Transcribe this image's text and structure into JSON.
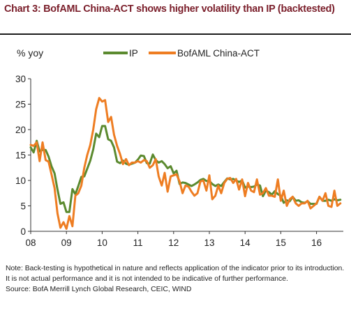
{
  "title": "Chart 3: BofAML China-ACT shows higher volatility than IP (backtested)",
  "footnote": "Note: Back-testing is hypothetical in nature and reflects application of the indicator prior to its introduction. It is not actual performance and it is not intended to be indicative of further performance.",
  "source": "Source: BofA Merrill Lynch Global Research, CEIC, WIND",
  "chart_data": {
    "type": "line",
    "ylabel": "% yoy",
    "ylim": [
      0,
      30
    ],
    "yticks": [
      0,
      5,
      10,
      15,
      20,
      25,
      30
    ],
    "xlim": [
      2008,
      2016.75
    ],
    "xticks": [
      2008,
      2009,
      2010,
      2011,
      2012,
      2013,
      2014,
      2015,
      2016
    ],
    "xticklabels": [
      "08",
      "09",
      "10",
      "11",
      "12",
      "13",
      "14",
      "15",
      "16"
    ],
    "grid": false,
    "legend": "top",
    "series": [
      {
        "name": "IP",
        "color": "#5b8a2f",
        "x": [
          2008.0,
          2008.083,
          2008.167,
          2008.25,
          2008.333,
          2008.417,
          2008.5,
          2008.583,
          2008.667,
          2008.75,
          2008.833,
          2008.917,
          2009.0,
          2009.083,
          2009.167,
          2009.25,
          2009.333,
          2009.417,
          2009.5,
          2009.583,
          2009.667,
          2009.75,
          2009.833,
          2009.917,
          2010.0,
          2010.083,
          2010.167,
          2010.25,
          2010.333,
          2010.417,
          2010.5,
          2010.583,
          2010.667,
          2010.75,
          2010.833,
          2010.917,
          2011.0,
          2011.083,
          2011.167,
          2011.25,
          2011.333,
          2011.417,
          2011.5,
          2011.583,
          2011.667,
          2011.75,
          2011.833,
          2011.917,
          2012.0,
          2012.083,
          2012.167,
          2012.25,
          2012.333,
          2012.417,
          2012.5,
          2012.583,
          2012.667,
          2012.75,
          2012.833,
          2012.917,
          2013.0,
          2013.083,
          2013.167,
          2013.25,
          2013.333,
          2013.417,
          2013.5,
          2013.583,
          2013.667,
          2013.75,
          2013.833,
          2013.917,
          2014.0,
          2014.083,
          2014.167,
          2014.25,
          2014.333,
          2014.417,
          2014.5,
          2014.583,
          2014.667,
          2014.75,
          2014.833,
          2014.917,
          2015.0,
          2015.083,
          2015.167,
          2015.25,
          2015.333,
          2015.417,
          2015.5,
          2015.583,
          2015.667,
          2015.75,
          2015.833,
          2015.917,
          2016.0,
          2016.083,
          2016.167,
          2016.25,
          2016.333,
          2016.417,
          2016.5,
          2016.583,
          2016.667
        ],
        "values": [
          16.5,
          15.5,
          17.8,
          15.7,
          16.0,
          16.0,
          14.7,
          12.8,
          11.4,
          8.2,
          5.4,
          5.7,
          3.8,
          3.8,
          8.3,
          7.3,
          8.9,
          10.7,
          10.8,
          12.3,
          13.9,
          16.1,
          19.2,
          18.5,
          20.7,
          20.7,
          18.1,
          17.8,
          16.5,
          13.7,
          13.4,
          13.9,
          13.3,
          13.1,
          13.3,
          13.5,
          14.1,
          14.9,
          14.8,
          13.4,
          13.3,
          15.1,
          14.0,
          13.5,
          13.8,
          13.2,
          12.4,
          12.8,
          11.4,
          11.9,
          9.3,
          9.6,
          9.5,
          9.2,
          8.9,
          9.2,
          9.6,
          10.1,
          10.3,
          9.9,
          9.9,
          9.3,
          8.9,
          9.2,
          8.9,
          9.7,
          10.4,
          10.2,
          10.3,
          10.0,
          9.7,
          10.0,
          8.6,
          8.8,
          8.7,
          8.8,
          9.2,
          9.0,
          6.9,
          8.0,
          7.7,
          7.2,
          7.9,
          7.3,
          7.0,
          5.6,
          6.1,
          5.9,
          6.8,
          6.0,
          6.1,
          5.7,
          5.6,
          5.9,
          5.4,
          5.4,
          5.4,
          6.8,
          6.0,
          6.0,
          6.2,
          6.0,
          6.3,
          6.1,
          6.2
        ]
      },
      {
        "name": "BofAML China-ACT",
        "color": "#ee7d22",
        "x": [
          2008.0,
          2008.083,
          2008.167,
          2008.25,
          2008.333,
          2008.417,
          2008.5,
          2008.583,
          2008.667,
          2008.75,
          2008.833,
          2008.917,
          2009.0,
          2009.083,
          2009.167,
          2009.25,
          2009.333,
          2009.417,
          2009.5,
          2009.583,
          2009.667,
          2009.75,
          2009.833,
          2009.917,
          2010.0,
          2010.083,
          2010.167,
          2010.25,
          2010.333,
          2010.417,
          2010.5,
          2010.583,
          2010.667,
          2010.75,
          2010.833,
          2010.917,
          2011.0,
          2011.083,
          2011.167,
          2011.25,
          2011.333,
          2011.417,
          2011.5,
          2011.583,
          2011.667,
          2011.75,
          2011.833,
          2011.917,
          2012.0,
          2012.083,
          2012.167,
          2012.25,
          2012.333,
          2012.417,
          2012.5,
          2012.583,
          2012.667,
          2012.75,
          2012.833,
          2012.917,
          2013.0,
          2013.083,
          2013.167,
          2013.25,
          2013.333,
          2013.417,
          2013.5,
          2013.583,
          2013.667,
          2013.75,
          2013.833,
          2013.917,
          2014.0,
          2014.083,
          2014.167,
          2014.25,
          2014.333,
          2014.417,
          2014.5,
          2014.583,
          2014.667,
          2014.75,
          2014.833,
          2014.917,
          2015.0,
          2015.083,
          2015.167,
          2015.25,
          2015.333,
          2015.417,
          2015.5,
          2015.583,
          2015.667,
          2015.75,
          2015.833,
          2015.917,
          2016.0,
          2016.083,
          2016.167,
          2016.25,
          2016.333,
          2016.417,
          2016.5,
          2016.583,
          2016.667
        ],
        "values": [
          17.0,
          16.8,
          17.5,
          13.8,
          17.5,
          14.0,
          13.7,
          11.2,
          8.5,
          3.5,
          0.7,
          1.8,
          0.5,
          3.0,
          1.0,
          7.0,
          7.5,
          9.0,
          12.5,
          15.0,
          17.0,
          20.0,
          24.0,
          26.2,
          25.5,
          25.8,
          21.5,
          22.5,
          19.0,
          16.8,
          15.2,
          13.2,
          14.2,
          13.0,
          13.5,
          13.5,
          13.8,
          13.5,
          14.0,
          13.8,
          12.5,
          13.0,
          14.2,
          10.8,
          9.0,
          11.5,
          7.8,
          10.8,
          11.0,
          11.2,
          9.8,
          7.5,
          9.0,
          8.8,
          7.8,
          7.0,
          7.5,
          9.8,
          10.0,
          8.0,
          11.0,
          6.3,
          7.0,
          9.0,
          7.5,
          9.5,
          10.3,
          10.5,
          9.5,
          10.3,
          8.2,
          10.2,
          6.9,
          9.5,
          8.0,
          7.7,
          10.2,
          7.2,
          7.5,
          8.5,
          7.0,
          7.0,
          6.8,
          10.2,
          6.0,
          8.0,
          5.0,
          6.3,
          6.8,
          5.5,
          5.0,
          5.5,
          5.5,
          6.0,
          4.5,
          5.0,
          5.5,
          6.8,
          6.0,
          7.5,
          5.0,
          4.8,
          8.0,
          5.0,
          5.5
        ]
      }
    ]
  }
}
